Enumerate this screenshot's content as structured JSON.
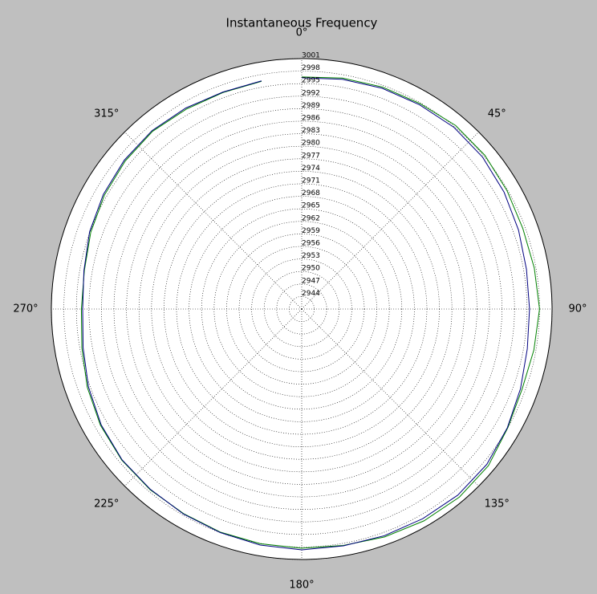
{
  "chart_data": {
    "type": "polar",
    "title": "Instantaneous Frequency",
    "theta_direction": "clockwise",
    "theta_zero": "top",
    "thetaticks": [
      {
        "value": 0,
        "label": "0°"
      },
      {
        "value": 45,
        "label": "45°"
      },
      {
        "value": 90,
        "label": "90°"
      },
      {
        "value": 135,
        "label": "135°"
      },
      {
        "value": 180,
        "label": "180°"
      },
      {
        "value": 225,
        "label": "225°"
      },
      {
        "value": 270,
        "label": "270°"
      },
      {
        "value": 315,
        "label": "315°"
      }
    ],
    "rlim": [
      2941,
      3001
    ],
    "rticks": [
      2944,
      2947,
      2950,
      2953,
      2956,
      2959,
      2962,
      2965,
      2968,
      2971,
      2974,
      2977,
      2980,
      2983,
      2986,
      2989,
      2992,
      2995,
      2998,
      3001
    ],
    "grid": true,
    "x": [
      0,
      10,
      20,
      30,
      40,
      50,
      60,
      70,
      80,
      90,
      100,
      110,
      120,
      130,
      140,
      150,
      160,
      170,
      180,
      190,
      200,
      210,
      220,
      230,
      240,
      250,
      260,
      270,
      280,
      290,
      300,
      310,
      320,
      330,
      340,
      350
    ],
    "series": [
      {
        "color": "#008000",
        "values": [
          2996.6,
          2997.2,
          2997.6,
          2997.8,
          2998.4,
          2998.3,
          2997.8,
          2997.4,
          2997.6,
          2998.0,
          2997.5,
          2997.2,
          2998.0,
          2999.4,
          2999.8,
          2999.6,
          2999.1,
          2998.5,
          2998.3,
          2998.1,
          2997.9,
          2997.6,
          2997.5,
          2997.3,
          2996.7,
          2995.7,
          2994.5,
          2993.8,
          2993.9,
          2994.8,
          2995.6,
          2996.2,
          2996.6,
          2996.3,
          2996.2,
          2996.4
        ]
      },
      {
        "color": "#000080",
        "values": [
          2996.4,
          2996.9,
          2997.3,
          2997.5,
          2997.8,
          2997.6,
          2997.0,
          2996.3,
          2995.7,
          2995.6,
          2995.9,
          2996.8,
          2997.9,
          2998.9,
          2999.2,
          2999.0,
          2998.8,
          2998.6,
          2998.7,
          2998.4,
          2998.0,
          2997.7,
          2997.4,
          2997.2,
          2996.5,
          2995.4,
          2994.2,
          2993.5,
          2994.0,
          2995.1,
          2995.9,
          2996.5,
          2996.8,
          2996.6,
          2996.3,
          2996.5
        ]
      }
    ]
  }
}
